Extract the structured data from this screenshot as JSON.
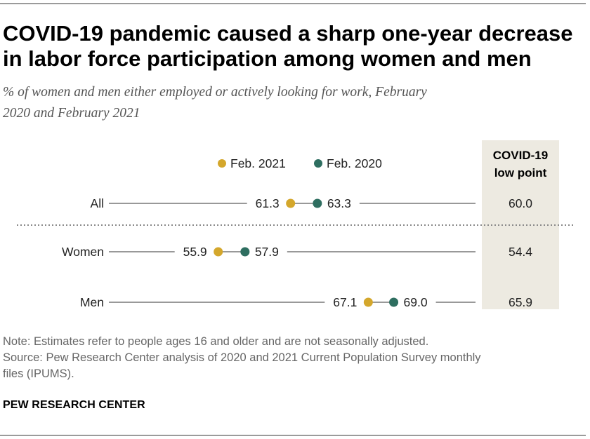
{
  "title_lines": [
    "COVID-19 pandemic caused a sharp one-year decrease",
    "in labor force participation among women and men"
  ],
  "subtitle_lines": [
    "% of women and men either employed or actively looking for work, February",
    "2020 and February 2021"
  ],
  "legend": [
    {
      "label": "Feb. 2021",
      "color": "#d4a72c"
    },
    {
      "label": "Feb. 2020",
      "color": "#2e6e60"
    }
  ],
  "low_point_header": [
    "COVID-19",
    "low point"
  ],
  "chart_data": {
    "type": "dot",
    "title": "COVID-19 pandemic caused a sharp one-year decrease in labor force participation among women and men",
    "x_domain": [
      48,
      75
    ],
    "categories": [
      "All",
      "Women",
      "Men"
    ],
    "series": [
      {
        "name": "Feb. 2021",
        "color": "#d4a72c",
        "values": [
          61.3,
          55.9,
          67.1
        ]
      },
      {
        "name": "Feb. 2020",
        "color": "#2e6e60",
        "values": [
          63.3,
          57.9,
          69.0
        ]
      }
    ],
    "value_labels": {
      "Feb. 2021": [
        "61.3",
        "55.9",
        "67.1"
      ],
      "Feb. 2020": [
        "63.3",
        "57.9",
        "69.0"
      ]
    },
    "low_point": {
      "values": [
        60.0,
        54.4,
        65.9
      ],
      "labels": [
        "60.0",
        "54.4",
        "65.9"
      ]
    }
  },
  "notes": {
    "note": "Note: Estimates refer to people ages 16 and older and are not seasonally adjusted.",
    "source_lines": [
      "Source: Pew Research Center analysis of 2020 and 2021 Current Population Survey monthly",
      "files (IPUMS)."
    ]
  },
  "brand": "PEW RESEARCH CENTER",
  "colors": {
    "line": "#999999",
    "lowpoint_bg": "#edeae1",
    "divider": "#888888",
    "label": "#222222"
  }
}
